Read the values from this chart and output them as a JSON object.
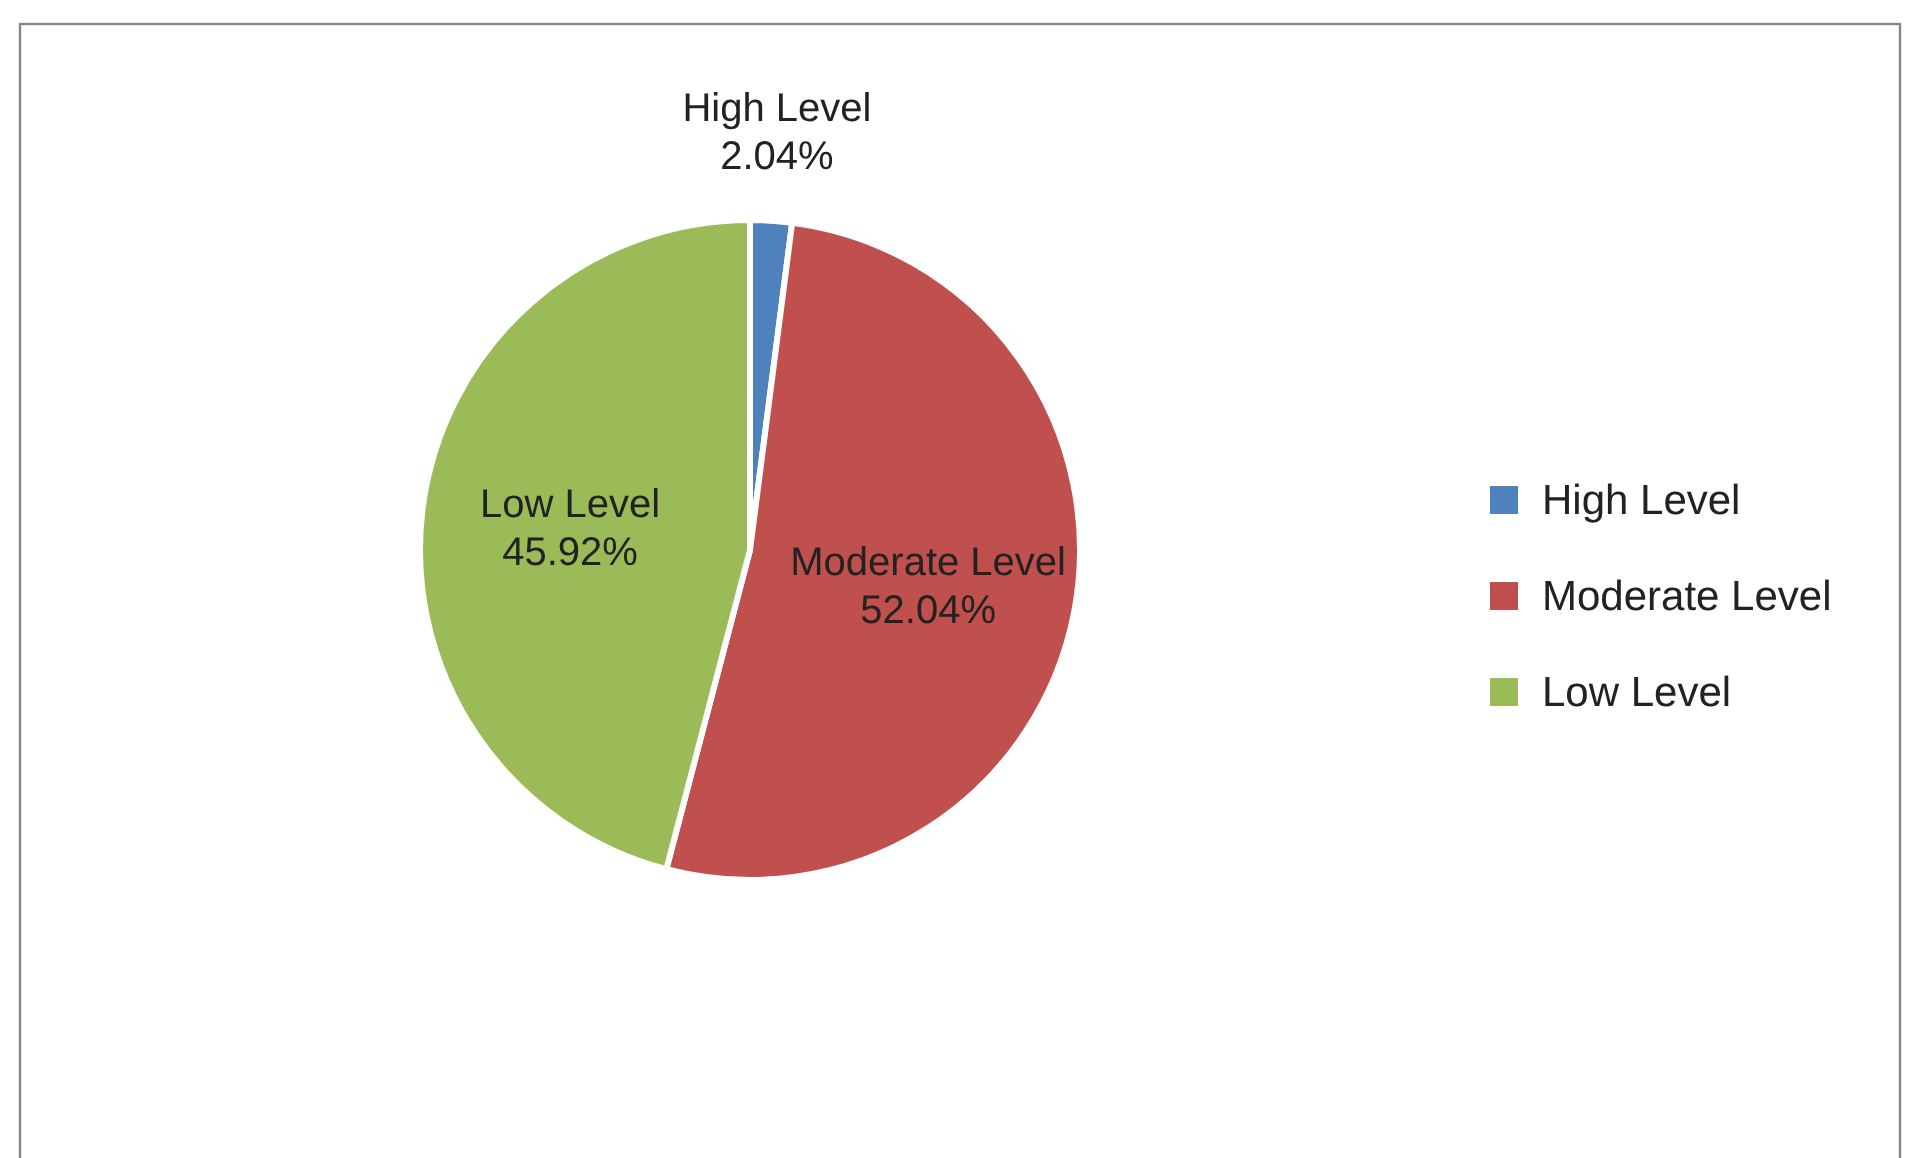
{
  "chart_data": {
    "type": "pie",
    "categories": [
      "High Level",
      "Moderate Level",
      "Low Level"
    ],
    "values": [
      2.04,
      52.04,
      45.92
    ],
    "colors": [
      "#4f81bd",
      "#c0504d",
      "#9bbb59"
    ],
    "value_labels": [
      "2.04%",
      "52.04%",
      "45.92%"
    ],
    "legend": "right"
  }
}
